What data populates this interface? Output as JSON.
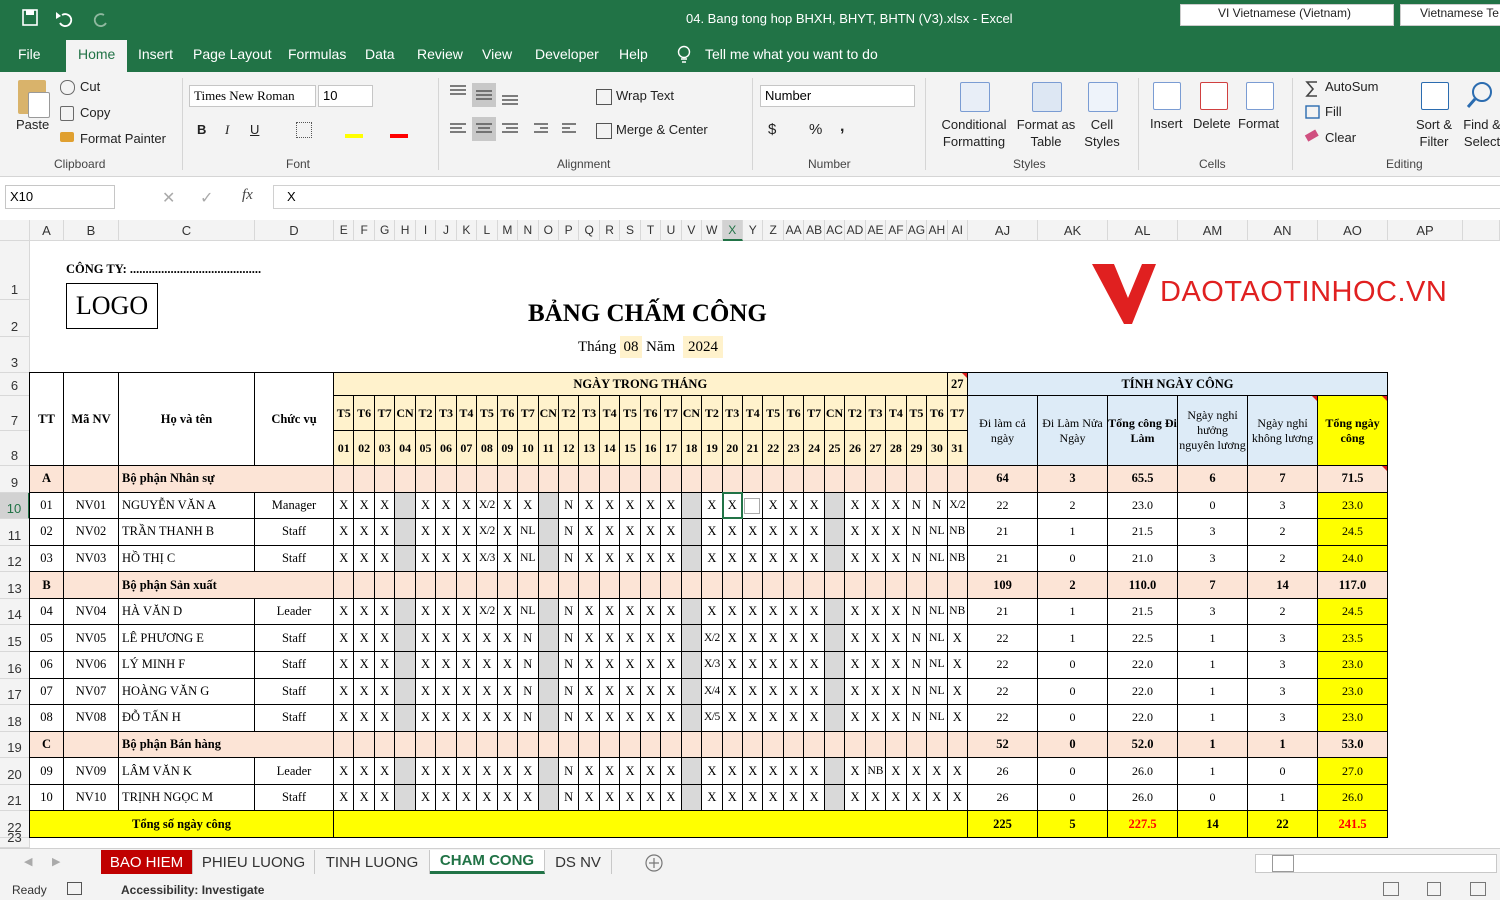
{
  "title_bar": {
    "document_title": "04. Bang tong hop BHXH, BHYT, BHTN (V3).xlsx  -  Excel",
    "language": "VI Vietnamese (Vietnam)",
    "language_2": "Vietnamese Te"
  },
  "menu_tabs": [
    "File",
    "Home",
    "Insert",
    "Page Layout",
    "Formulas",
    "Data",
    "Review",
    "View",
    "Developer",
    "Help"
  ],
  "active_menu_tab": "Home",
  "tell_me": "Tell me what you want to do",
  "ribbon": {
    "clipboard": {
      "paste": "Paste",
      "cut": "Cut",
      "copy": "Copy",
      "format_painter": "Format Painter",
      "group": "Clipboard"
    },
    "font": {
      "font_name": "Times New Roman",
      "font_size": "10",
      "bold": "B",
      "italic": "I",
      "underline": "U",
      "group": "Font"
    },
    "alignment": {
      "wrap_text": "Wrap Text",
      "merge_center": "Merge & Center",
      "group": "Alignment"
    },
    "number": {
      "format": "Number",
      "currency": "$",
      "percent": "%",
      "comma": ",",
      "group": "Number"
    },
    "styles": {
      "conditional": "Conditional Formatting",
      "format_table": "Format as Table",
      "cell_styles": "Cell Styles",
      "group": "Styles"
    },
    "cells": {
      "insert": "Insert",
      "delete": "Delete",
      "format": "Format",
      "group": "Cells"
    },
    "editing": {
      "autosum": "AutoSum",
      "fill": "Fill",
      "clear": "Clear",
      "sort_filter": "Sort & Filter",
      "find_select": "Find & Select",
      "group": "Editing"
    }
  },
  "formula_bar": {
    "name_box": "X10",
    "fx": "fx",
    "formula": "X"
  },
  "column_headers": [
    "A",
    "B",
    "C",
    "D",
    "E",
    "F",
    "G",
    "H",
    "I",
    "J",
    "K",
    "L",
    "M",
    "N",
    "O",
    "P",
    "Q",
    "R",
    "S",
    "T",
    "U",
    "V",
    "W",
    "X",
    "Y",
    "Z",
    "AA",
    "AB",
    "AC",
    "AD",
    "AE",
    "AF",
    "AG",
    "AH",
    "AI",
    "AJ",
    "AK",
    "AL",
    "AM",
    "AN",
    "AO",
    "AP"
  ],
  "row_headers": [
    1,
    2,
    3,
    6,
    7,
    8,
    9,
    10,
    11,
    12,
    13,
    14,
    15,
    16,
    17,
    18,
    19,
    20,
    21,
    22,
    23
  ],
  "sheet": {
    "company": "CÔNG TY: ..........................................",
    "logo": "LOGO",
    "title": "BẢNG CHẤM CÔNG",
    "month_label": "Tháng",
    "month": "08",
    "year_label": "Năm",
    "year": "2024",
    "brand": "DAOTAOTINHOC.VN"
  },
  "table": {
    "headers": [
      "TT",
      "Mã NV",
      "Họ và tên",
      "Chức vụ"
    ],
    "days_header": "NGÀY TRONG THÁNG",
    "working_days": "27",
    "weekdays": [
      "T5",
      "T6",
      "T7",
      "CN",
      "T2",
      "T3",
      "T4",
      "T5",
      "T6",
      "T7",
      "CN",
      "T2",
      "T3",
      "T4",
      "T5",
      "T6",
      "T7",
      "CN",
      "T2",
      "T3",
      "T4",
      "T5",
      "T6",
      "T7",
      "CN",
      "T2",
      "T3",
      "T4",
      "T5",
      "T6",
      "T7"
    ],
    "days": [
      "01",
      "02",
      "03",
      "04",
      "05",
      "06",
      "07",
      "08",
      "09",
      "10",
      "11",
      "12",
      "13",
      "14",
      "15",
      "16",
      "17",
      "18",
      "19",
      "20",
      "21",
      "22",
      "23",
      "24",
      "25",
      "26",
      "27",
      "28",
      "29",
      "30",
      "31"
    ],
    "summary_header": "TÍNH NGÀY CÔNG",
    "summary_columns": [
      "Đi làm cả ngày",
      "Đi Làm Nửa Ngày",
      "Tổng công Đi Làm",
      "Ngày nghỉ hưởng nguyên lương",
      "Ngày nghỉ không lương",
      "Tổng ngày công"
    ],
    "sections": [
      {
        "tt": "A",
        "name": "Bộ phận Nhân sự",
        "totals": [
          "64",
          "3",
          "65.5",
          "6",
          "7",
          "71.5"
        ],
        "employees": [
          {
            "tt": "01",
            "code": "NV01",
            "name": "NGUYỄN VĂN A",
            "role": "Manager",
            "days": [
              "X",
              "X",
              "X",
              null,
              "X",
              "X",
              "X",
              "X/2",
              "X",
              "X",
              null,
              "N",
              "X",
              "X",
              "X",
              "X",
              "X",
              null,
              "X",
              "X",
              null,
              "X",
              "X",
              "X",
              null,
              "X",
              "X",
              "X",
              "N",
              "N",
              "X/2"
            ],
            "totals": [
              "22",
              "2",
              "23.0",
              "0",
              "3",
              "23.0"
            ]
          },
          {
            "tt": "02",
            "code": "NV02",
            "name": "TRẦN THANH B",
            "role": "Staff",
            "days": [
              "X",
              "X",
              "X",
              null,
              "X",
              "X",
              "X",
              "X/2",
              "X",
              "NL",
              null,
              "N",
              "X",
              "X",
              "X",
              "X",
              "X",
              null,
              "X",
              "X",
              "X",
              "X",
              "X",
              "X",
              null,
              "X",
              "X",
              "X",
              "N",
              "NL",
              "NB"
            ],
            "totals": [
              "21",
              "1",
              "21.5",
              "3",
              "2",
              "24.5"
            ]
          },
          {
            "tt": "03",
            "code": "NV03",
            "name": "HỒ THỊ C",
            "role": "Staff",
            "days": [
              "X",
              "X",
              "X",
              null,
              "X",
              "X",
              "X",
              "X/3",
              "X",
              "NL",
              null,
              "N",
              "X",
              "X",
              "X",
              "X",
              "X",
              null,
              "X",
              "X",
              "X",
              "X",
              "X",
              "X",
              null,
              "X",
              "X",
              "X",
              "N",
              "NL",
              "NB"
            ],
            "totals": [
              "21",
              "0",
              "21.0",
              "3",
              "2",
              "24.0"
            ]
          }
        ]
      },
      {
        "tt": "B",
        "name": "Bộ phận Sản xuất",
        "totals": [
          "109",
          "2",
          "110.0",
          "7",
          "14",
          "117.0"
        ],
        "employees": [
          {
            "tt": "04",
            "code": "NV04",
            "name": "HÀ VĂN D",
            "role": "Leader",
            "days": [
              "X",
              "X",
              "X",
              null,
              "X",
              "X",
              "X",
              "X/2",
              "X",
              "NL",
              null,
              "N",
              "X",
              "X",
              "X",
              "X",
              "X",
              null,
              "X",
              "X",
              "X",
              "X",
              "X",
              "X",
              null,
              "X",
              "X",
              "X",
              "N",
              "NL",
              "NB"
            ],
            "totals": [
              "21",
              "1",
              "21.5",
              "3",
              "2",
              "24.5"
            ]
          },
          {
            "tt": "05",
            "code": "NV05",
            "name": "LÊ PHƯƠNG E",
            "role": "Staff",
            "days": [
              "X",
              "X",
              "X",
              null,
              "X",
              "X",
              "X",
              "X",
              "X",
              "N",
              null,
              "N",
              "X",
              "X",
              "X",
              "X",
              "X",
              null,
              "X/2",
              "X",
              "X",
              "X",
              "X",
              "X",
              null,
              "X",
              "X",
              "X",
              "N",
              "NL",
              "X"
            ],
            "totals": [
              "22",
              "1",
              "22.5",
              "1",
              "3",
              "23.5"
            ]
          },
          {
            "tt": "06",
            "code": "NV06",
            "name": "LÝ MINH F",
            "role": "Staff",
            "days": [
              "X",
              "X",
              "X",
              null,
              "X",
              "X",
              "X",
              "X",
              "X",
              "N",
              null,
              "N",
              "X",
              "X",
              "X",
              "X",
              "X",
              null,
              "X/3",
              "X",
              "X",
              "X",
              "X",
              "X",
              null,
              "X",
              "X",
              "X",
              "N",
              "NL",
              "X"
            ],
            "totals": [
              "22",
              "0",
              "22.0",
              "1",
              "3",
              "23.0"
            ]
          },
          {
            "tt": "07",
            "code": "NV07",
            "name": "HOÀNG VĂN G",
            "role": "Staff",
            "days": [
              "X",
              "X",
              "X",
              null,
              "X",
              "X",
              "X",
              "X",
              "X",
              "N",
              null,
              "N",
              "X",
              "X",
              "X",
              "X",
              "X",
              null,
              "X/4",
              "X",
              "X",
              "X",
              "X",
              "X",
              null,
              "X",
              "X",
              "X",
              "N",
              "NL",
              "X"
            ],
            "totals": [
              "22",
              "0",
              "22.0",
              "1",
              "3",
              "23.0"
            ]
          },
          {
            "tt": "08",
            "code": "NV08",
            "name": "ĐỖ TẤN H",
            "role": "Staff",
            "days": [
              "X",
              "X",
              "X",
              null,
              "X",
              "X",
              "X",
              "X",
              "X",
              "N",
              null,
              "N",
              "X",
              "X",
              "X",
              "X",
              "X",
              null,
              "X/5",
              "X",
              "X",
              "X",
              "X",
              "X",
              null,
              "X",
              "X",
              "X",
              "N",
              "NL",
              "X"
            ],
            "totals": [
              "22",
              "0",
              "22.0",
              "1",
              "3",
              "23.0"
            ]
          }
        ]
      },
      {
        "tt": "C",
        "name": "Bộ phận Bán hàng",
        "totals": [
          "52",
          "0",
          "52.0",
          "1",
          "1",
          "53.0"
        ],
        "employees": [
          {
            "tt": "09",
            "code": "NV09",
            "name": "LÂM VĂN K",
            "role": "Leader",
            "days": [
              "X",
              "X",
              "X",
              null,
              "X",
              "X",
              "X",
              "X",
              "X",
              "X",
              null,
              "N",
              "X",
              "X",
              "X",
              "X",
              "X",
              null,
              "X",
              "X",
              "X",
              "X",
              "X",
              "X",
              null,
              "X",
              "NB",
              "X",
              "X",
              "X",
              "X"
            ],
            "totals": [
              "26",
              "0",
              "26.0",
              "1",
              "0",
              "27.0"
            ]
          },
          {
            "tt": "10",
            "code": "NV10",
            "name": "TRỊNH NGỌC M",
            "role": "Staff",
            "days": [
              "X",
              "X",
              "X",
              null,
              "X",
              "X",
              "X",
              "X",
              "X",
              "X",
              null,
              "N",
              "X",
              "X",
              "X",
              "X",
              "X",
              null,
              "X",
              "X",
              "X",
              "X",
              "X",
              "X",
              null,
              "X",
              "X",
              "X",
              "X",
              "X",
              "X"
            ],
            "totals": [
              "26",
              "0",
              "26.0",
              "0",
              "1",
              "26.0"
            ]
          }
        ]
      }
    ],
    "total_row": {
      "label": "Tổng số ngày công",
      "values": [
        "225",
        "5",
        "227.5",
        "14",
        "22",
        "241.5"
      ],
      "colors": [
        "#000000",
        "#000000",
        "#ff0000",
        "#000000",
        "#000000",
        "#ff0000"
      ]
    }
  },
  "sheet_tabs": [
    {
      "name": "BAO HIEM",
      "color": "#c00000"
    },
    {
      "name": "PHIEU LUONG",
      "color": null
    },
    {
      "name": "TINH LUONG",
      "color": null
    },
    {
      "name": "CHAM CONG",
      "color": null
    },
    {
      "name": "DS NV",
      "color": null
    }
  ],
  "active_sheet": "CHAM CONG",
  "status_bar": {
    "ready": "Ready",
    "accessibility": "Accessibility: Investigate"
  }
}
